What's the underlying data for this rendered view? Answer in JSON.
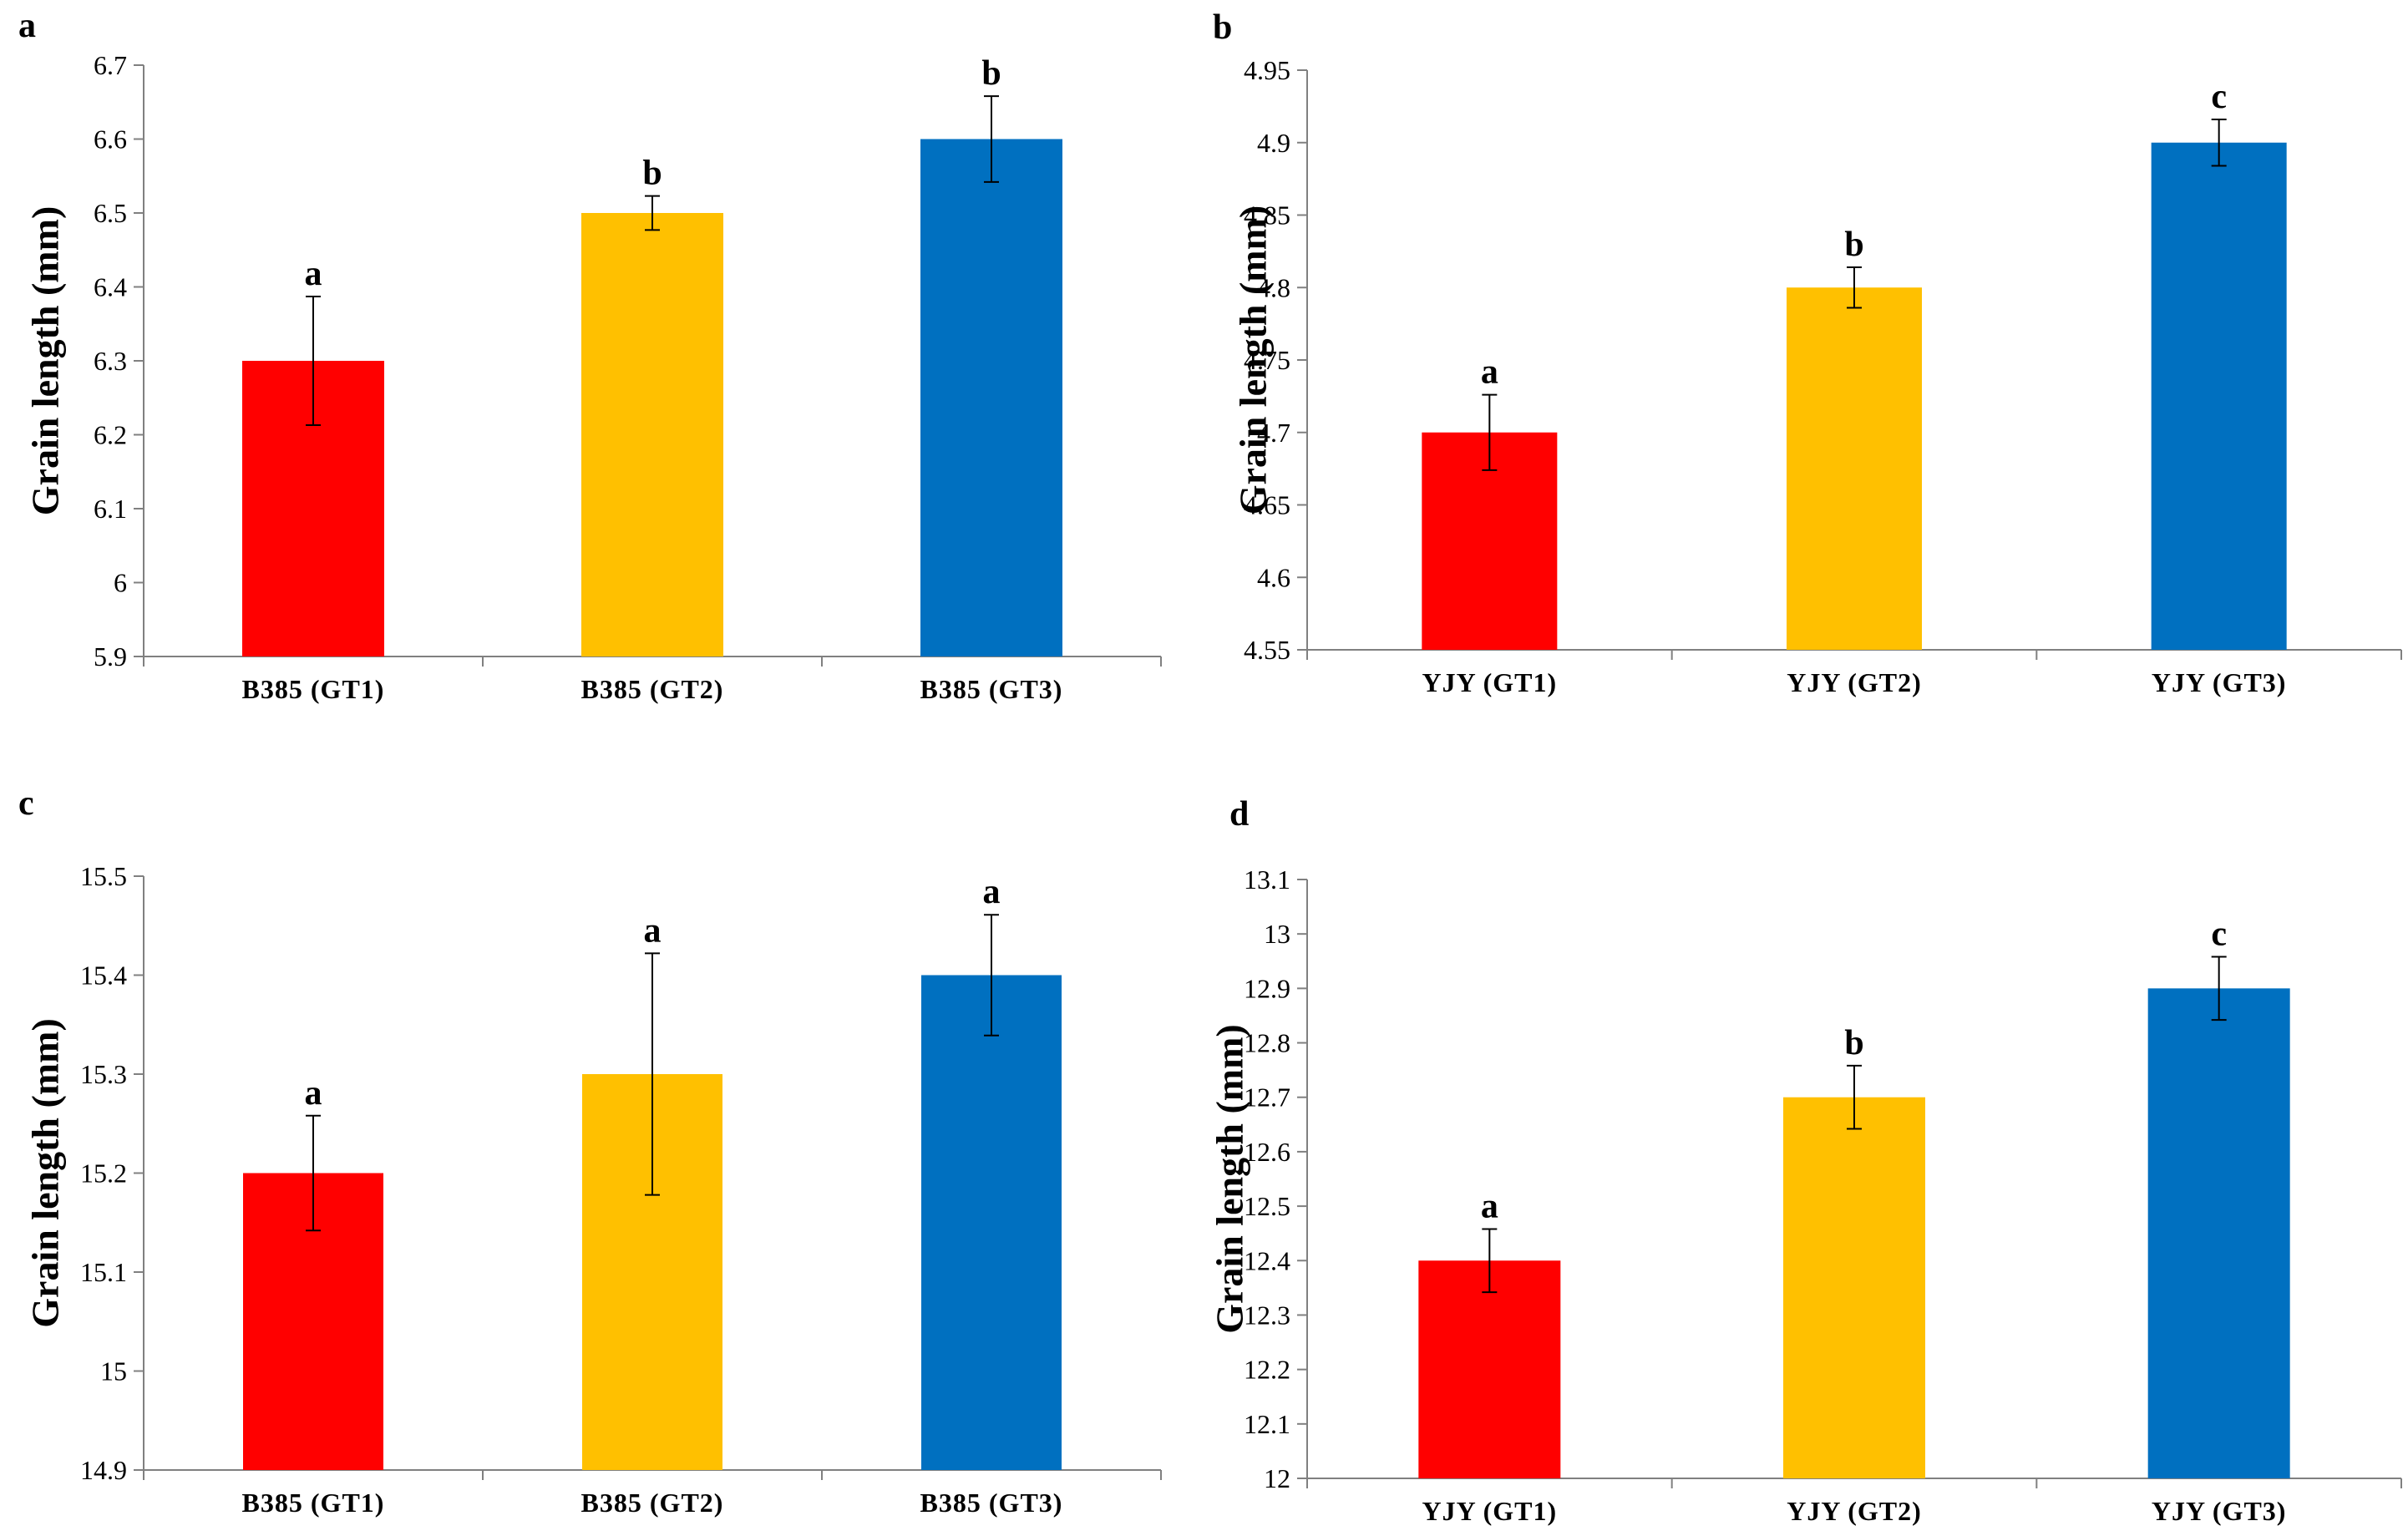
{
  "colors": {
    "gt1": "#ff0000",
    "gt2": "#ffc000",
    "gt3": "#0070c0",
    "axis": "#808080",
    "error_bar": "#000000"
  },
  "chart_data": [
    {
      "panel_label": "a",
      "type": "bar",
      "ylabel": "Grain length (mm)",
      "xlabel": "",
      "ylim": [
        5.9,
        6.7
      ],
      "yticks": [
        5.9,
        6,
        6.1,
        6.2,
        6.3,
        6.4,
        6.5,
        6.6,
        6.7
      ],
      "ytick_labels": [
        "5.9",
        "6",
        "6.1",
        "6.2",
        "6.3",
        "6.4",
        "6.5",
        "6.6",
        "6.7"
      ],
      "categories": [
        "B385 (GT1)",
        "B385 (GT2)",
        "B385 (GT3)"
      ],
      "values": [
        6.3,
        6.5,
        6.6
      ],
      "errors": [
        0.087,
        0.023,
        0.058
      ],
      "significance": [
        "a",
        "b",
        "b"
      ],
      "grid": false
    },
    {
      "panel_label": "b",
      "type": "bar",
      "ylabel": "Grain length (mm)",
      "xlabel": "",
      "ylim": [
        4.55,
        4.95
      ],
      "yticks": [
        4.55,
        4.6,
        4.65,
        4.7,
        4.75,
        4.8,
        4.85,
        4.9,
        4.95
      ],
      "ytick_labels": [
        "4.55",
        "4.6",
        "4.65",
        "4.7",
        "4.75",
        "4.8",
        "4.85",
        "4.9",
        "4.95"
      ],
      "categories": [
        "YJY (GT1)",
        "YJY (GT2)",
        "YJY (GT3)"
      ],
      "values": [
        4.7,
        4.8,
        4.9
      ],
      "errors": [
        0.026,
        0.014,
        0.016
      ],
      "significance": [
        "a",
        "b",
        "c"
      ],
      "grid": false
    },
    {
      "panel_label": "c",
      "type": "bar",
      "ylabel": "Grain length (mm)",
      "xlabel": "",
      "ylim": [
        14.9,
        15.5
      ],
      "yticks": [
        14.9,
        15,
        15.1,
        15.2,
        15.3,
        15.4,
        15.5
      ],
      "ytick_labels": [
        "14.9",
        "15",
        "15.1",
        "15.2",
        "15.3",
        "15.4",
        "15.5"
      ],
      "categories": [
        "B385 (GT1)",
        "B385 (GT2)",
        "B385 (GT3)"
      ],
      "values": [
        15.2,
        15.3,
        15.4
      ],
      "errors": [
        0.058,
        0.122,
        0.061
      ],
      "significance": [
        "a",
        "a",
        "a"
      ],
      "grid": false
    },
    {
      "panel_label": "d",
      "type": "bar",
      "ylabel": "Grain length (mm)",
      "xlabel": "",
      "ylim": [
        12,
        13.1
      ],
      "yticks": [
        12,
        12.1,
        12.2,
        12.3,
        12.4,
        12.5,
        12.6,
        12.7,
        12.8,
        12.9,
        13,
        13.1
      ],
      "ytick_labels": [
        "12",
        "12.1",
        "12.2",
        "12.3",
        "12.4",
        "12.5",
        "12.6",
        "12.7",
        "12.8",
        "12.9",
        "13",
        "13.1"
      ],
      "categories": [
        "YJY (GT1)",
        "YJY (GT2)",
        "YJY (GT3)"
      ],
      "values": [
        12.4,
        12.7,
        12.9
      ],
      "errors": [
        0.058,
        0.058,
        0.058
      ],
      "significance": [
        "a",
        "b",
        "c"
      ],
      "grid": false
    }
  ]
}
